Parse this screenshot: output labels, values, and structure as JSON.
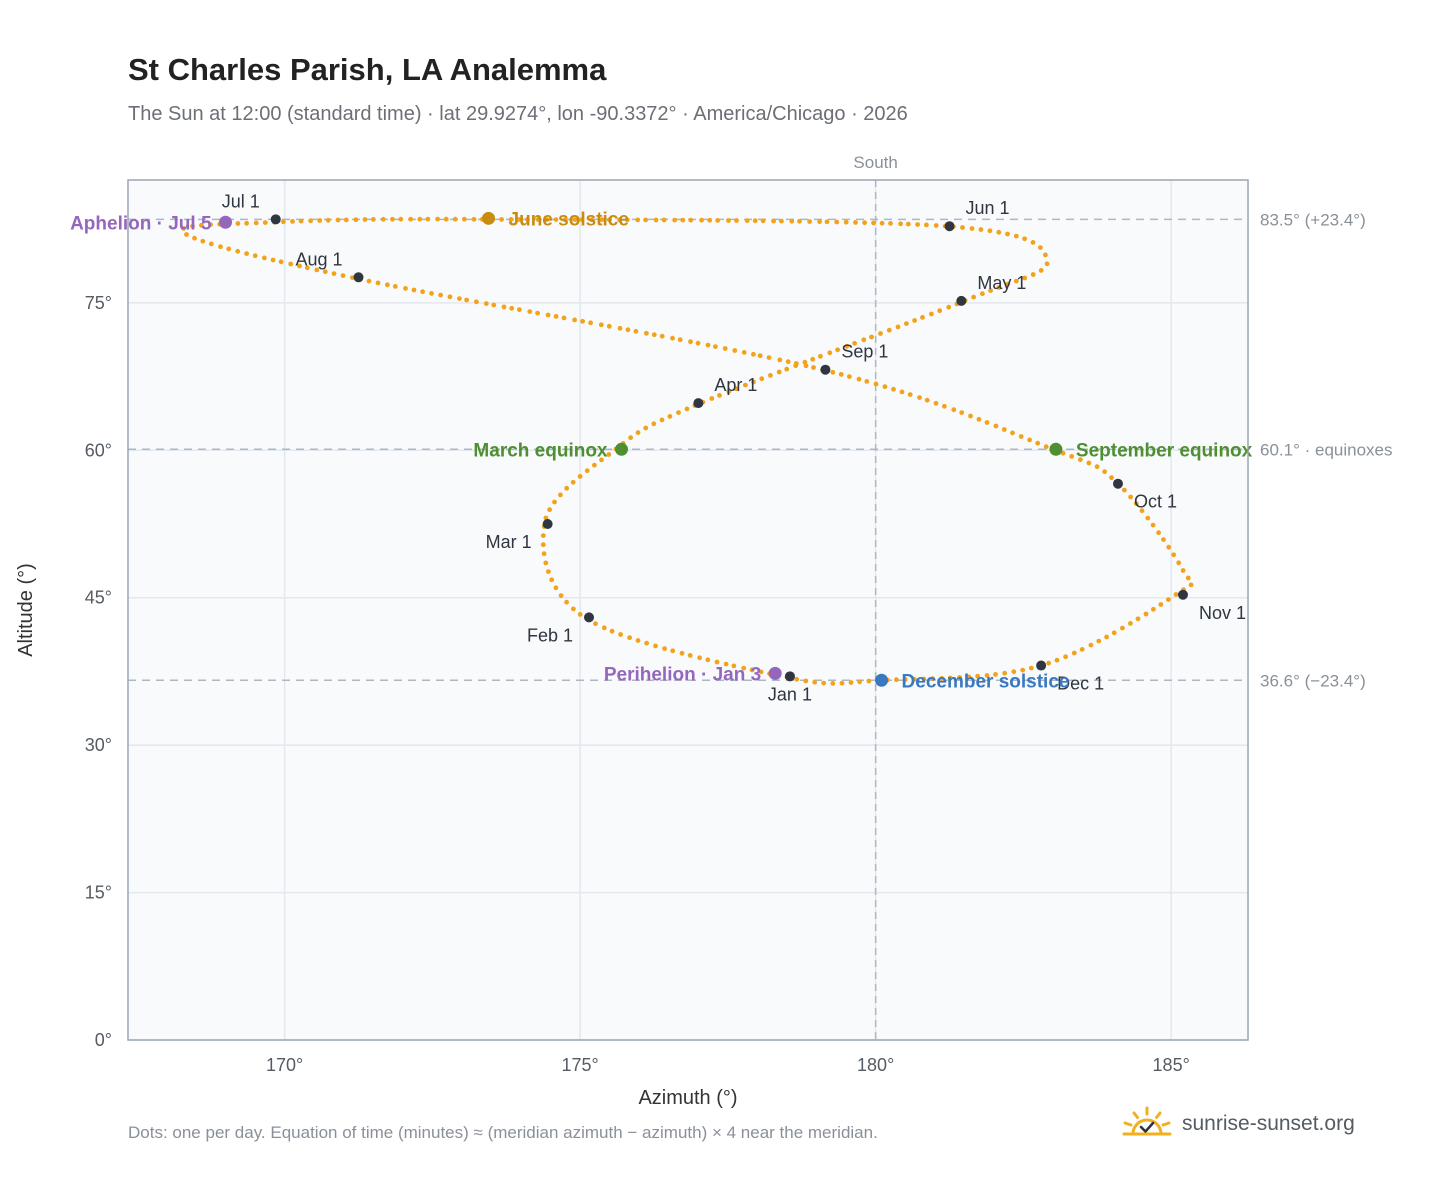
{
  "title": "St Charles Parish, LA Analemma",
  "subtitle": "The Sun at 12:00 (standard time) · lat 29.9274°, lon -90.3372° · America/Chicago · 2026",
  "footnote": "Dots: one per day. Equation of time (minutes) ≈ (meridian azimuth − azimuth) × 4 near the meridian.",
  "brand": {
    "name": "sunrise-sunset.org",
    "icon": "sun-logo-icon"
  },
  "colors": {
    "dots": "#f2a31b",
    "month_marker": "#2f3640",
    "equinox": "#4f8f32",
    "june_solstice": "#c98c10",
    "december_solstice": "#3a78c0",
    "aphelion_perihelion": "#9467bd",
    "grid": "#e3e8ee",
    "plot_bg": "#f8fafc",
    "ref_line": "#aeb8c4"
  },
  "chart_data": {
    "type": "scatter",
    "xlabel": "Azimuth (°)",
    "ylabel": "Altitude (°)",
    "xlim": [
      167.35,
      186.3
    ],
    "ylim": [
      0,
      87.5
    ],
    "x_ticks": [
      {
        "value": 170,
        "label": "170°"
      },
      {
        "value": 175,
        "label": "175°"
      },
      {
        "value": 180,
        "label": "180°"
      },
      {
        "value": 185,
        "label": "185°"
      }
    ],
    "y_ticks": [
      {
        "value": 0,
        "label": "0°"
      },
      {
        "value": 15,
        "label": "15°"
      },
      {
        "value": 30,
        "label": "30°"
      },
      {
        "value": 45,
        "label": "45°"
      },
      {
        "value": 60,
        "label": "60°"
      },
      {
        "value": 75,
        "label": "75°"
      }
    ],
    "grid": true,
    "meridian": {
      "azimuth": 180,
      "label": "South"
    },
    "reference_lines": [
      {
        "altitude": 83.5,
        "label": "83.5° (+23.4°)"
      },
      {
        "altitude": 60.1,
        "label": "60.1° · equinoxes"
      },
      {
        "altitude": 36.6,
        "label": "36.6° (−23.4°)"
      }
    ],
    "path_anchors": [
      {
        "x": 178.5,
        "y": 36.9
      },
      {
        "x": 175.1,
        "y": 42.9
      },
      {
        "x": 174.4,
        "y": 52.6
      },
      {
        "x": 175.6,
        "y": 60.1
      },
      {
        "x": 177.0,
        "y": 64.7
      },
      {
        "x": 181.5,
        "y": 75.2
      },
      {
        "x": 182.9,
        "y": 79.3
      },
      {
        "x": 181.2,
        "y": 82.8
      },
      {
        "x": 173.4,
        "y": 83.5
      },
      {
        "x": 169.8,
        "y": 83.2
      },
      {
        "x": 168.3,
        "y": 82.1
      },
      {
        "x": 171.2,
        "y": 77.5
      },
      {
        "x": 179.1,
        "y": 68.2
      },
      {
        "x": 183.0,
        "y": 60.1
      },
      {
        "x": 184.1,
        "y": 56.6
      },
      {
        "x": 185.2,
        "y": 47.8
      },
      {
        "x": 185.1,
        "y": 45.4
      },
      {
        "x": 182.8,
        "y": 38.1
      },
      {
        "x": 180.1,
        "y": 36.6
      },
      {
        "x": 178.5,
        "y": 36.9
      }
    ],
    "month_markers": [
      {
        "label": "Jan 1",
        "x": 178.55,
        "y": 37.0,
        "pos": "below"
      },
      {
        "label": "Feb 1",
        "x": 175.15,
        "y": 43.0,
        "pos": "below-left"
      },
      {
        "label": "Mar 1",
        "x": 174.45,
        "y": 52.5,
        "pos": "below-left"
      },
      {
        "label": "Apr 1",
        "x": 177.0,
        "y": 64.8,
        "pos": "above-right"
      },
      {
        "label": "May 1",
        "x": 181.45,
        "y": 75.2,
        "pos": "above-right"
      },
      {
        "label": "Jun 1",
        "x": 181.25,
        "y": 82.8,
        "pos": "above-right"
      },
      {
        "label": "Jul 1",
        "x": 169.85,
        "y": 83.5,
        "pos": "above-left"
      },
      {
        "label": "Aug 1",
        "x": 171.25,
        "y": 77.6,
        "pos": "above-left"
      },
      {
        "label": "Sep 1",
        "x": 179.15,
        "y": 68.2,
        "pos": "above-right"
      },
      {
        "label": "Oct 1",
        "x": 184.1,
        "y": 56.6,
        "pos": "below-right"
      },
      {
        "label": "Nov 1",
        "x": 185.2,
        "y": 45.3,
        "pos": "below-right"
      },
      {
        "label": "Dec 1",
        "x": 182.8,
        "y": 38.1,
        "pos": "below-right"
      }
    ],
    "events": [
      {
        "label": "March equinox",
        "x": 175.7,
        "y": 60.1,
        "color": "#4f8f32",
        "pos": "left"
      },
      {
        "label": "September equinox",
        "x": 183.05,
        "y": 60.1,
        "color": "#4f8f32",
        "pos": "right"
      },
      {
        "label": "June solstice",
        "x": 173.45,
        "y": 83.6,
        "color": "#c98c10",
        "pos": "right"
      },
      {
        "label": "December solstice",
        "x": 180.1,
        "y": 36.6,
        "color": "#3a78c0",
        "pos": "right"
      },
      {
        "label": "Aphelion · Jul 5",
        "x": 169.0,
        "y": 83.2,
        "color": "#9467bd",
        "pos": "left"
      },
      {
        "label": "Perihelion · Jan 3",
        "x": 178.3,
        "y": 37.3,
        "color": "#9467bd",
        "pos": "left"
      }
    ]
  }
}
